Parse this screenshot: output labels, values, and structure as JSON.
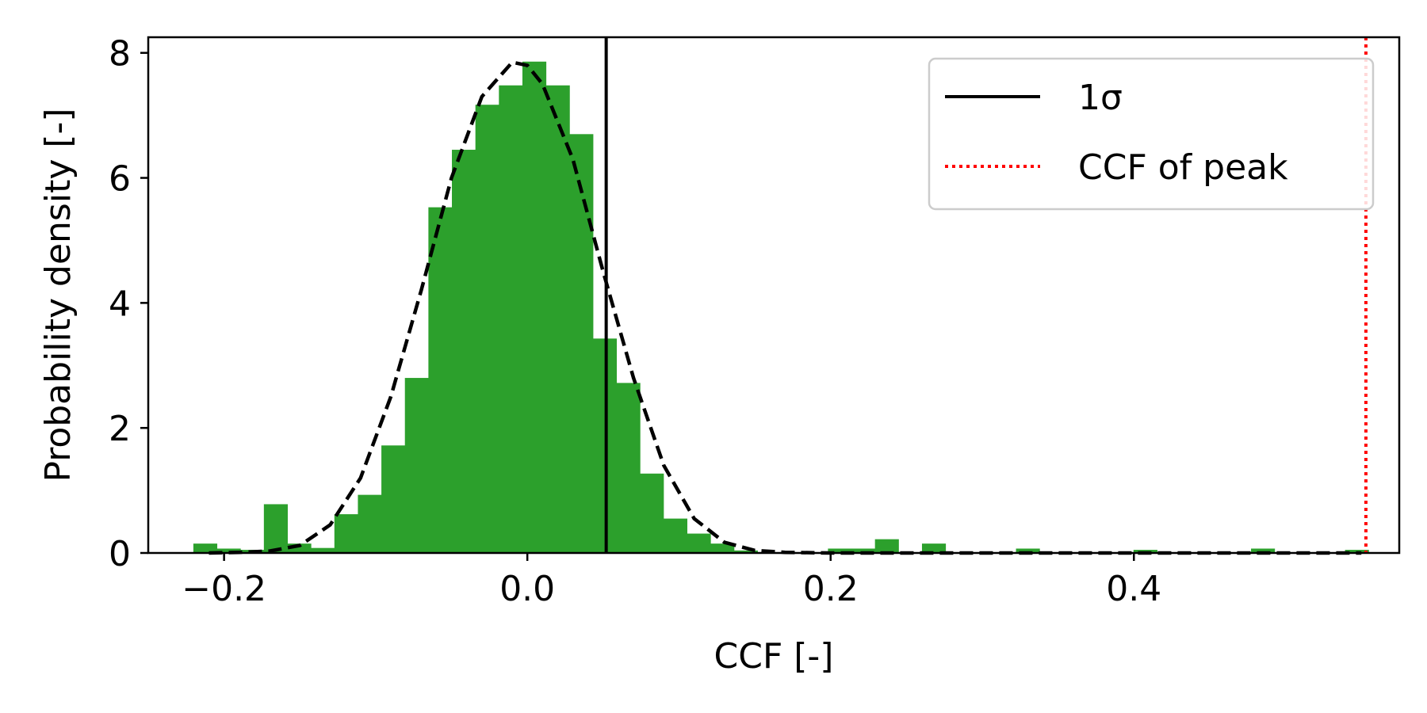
{
  "chart_data": {
    "type": "bar",
    "title": "",
    "xlabel": "CCF [-]",
    "ylabel": "Probability density [-]",
    "xlim": [
      -0.25,
      0.575
    ],
    "ylim": [
      0,
      8.25
    ],
    "x_ticks": [
      {
        "value": -0.2,
        "label": "−0.2"
      },
      {
        "value": 0.0,
        "label": "0.0"
      },
      {
        "value": 0.2,
        "label": "0.2"
      },
      {
        "value": 0.4,
        "label": "0.4"
      }
    ],
    "y_ticks": [
      {
        "value": 0,
        "label": "0"
      },
      {
        "value": 2,
        "label": "2"
      },
      {
        "value": 4,
        "label": "4"
      },
      {
        "value": 6,
        "label": "6"
      },
      {
        "value": 8,
        "label": "8"
      }
    ],
    "histogram": {
      "color": "#2ca02c",
      "bin_width": 0.0155,
      "bins": [
        {
          "x": -0.2125,
          "y": 0.15
        },
        {
          "x": -0.197,
          "y": 0.07
        },
        {
          "x": -0.1815,
          "y": 0.05
        },
        {
          "x": -0.166,
          "y": 0.78
        },
        {
          "x": -0.1505,
          "y": 0.15
        },
        {
          "x": -0.135,
          "y": 0.08
        },
        {
          "x": -0.1195,
          "y": 0.62
        },
        {
          "x": -0.104,
          "y": 0.93
        },
        {
          "x": -0.0885,
          "y": 1.72
        },
        {
          "x": -0.073,
          "y": 2.8
        },
        {
          "x": -0.0575,
          "y": 5.53
        },
        {
          "x": -0.042,
          "y": 6.45
        },
        {
          "x": -0.0265,
          "y": 7.17
        },
        {
          "x": -0.011,
          "y": 7.48
        },
        {
          "x": 0.0045,
          "y": 7.86
        },
        {
          "x": 0.02,
          "y": 7.48
        },
        {
          "x": 0.0355,
          "y": 6.7
        },
        {
          "x": 0.051,
          "y": 3.43
        },
        {
          "x": 0.0665,
          "y": 2.72
        },
        {
          "x": 0.082,
          "y": 1.27
        },
        {
          "x": 0.0975,
          "y": 0.55
        },
        {
          "x": 0.113,
          "y": 0.31
        },
        {
          "x": 0.1285,
          "y": 0.15
        },
        {
          "x": 0.144,
          "y": 0.04
        },
        {
          "x": 0.206,
          "y": 0.07
        },
        {
          "x": 0.2215,
          "y": 0.07
        },
        {
          "x": 0.237,
          "y": 0.22
        },
        {
          "x": 0.268,
          "y": 0.15
        },
        {
          "x": 0.33,
          "y": 0.07
        },
        {
          "x": 0.4075,
          "y": 0.05
        },
        {
          "x": 0.485,
          "y": 0.07
        },
        {
          "x": 0.547,
          "y": 0.05
        }
      ]
    },
    "fit_curve": {
      "style": "dashed",
      "color": "#000000",
      "x": [
        -0.21,
        -0.19,
        -0.17,
        -0.15,
        -0.13,
        -0.11,
        -0.09,
        -0.07,
        -0.05,
        -0.03,
        -0.01,
        0.0,
        0.01,
        0.03,
        0.05,
        0.07,
        0.09,
        0.11,
        0.13,
        0.15,
        0.17,
        0.2,
        0.25,
        0.3,
        0.35,
        0.4,
        0.45,
        0.5,
        0.55
      ],
      "y": [
        0.0,
        0.01,
        0.03,
        0.12,
        0.45,
        1.2,
        2.5,
        4.2,
        6.0,
        7.3,
        7.85,
        7.8,
        7.5,
        6.3,
        4.5,
        2.8,
        1.4,
        0.55,
        0.17,
        0.04,
        0.01,
        0.0,
        0.0,
        0.0,
        0.0,
        0.0,
        0.0,
        0.0,
        0.0
      ]
    },
    "vlines": [
      {
        "x": 0.052,
        "color": "#000000",
        "style": "solid"
      },
      {
        "x": 0.553,
        "color": "#ff0000",
        "style": "dotted"
      }
    ],
    "legend": {
      "position": "top-right",
      "entries": [
        {
          "label": "1σ",
          "color": "#000000",
          "style": "solid"
        },
        {
          "label": "CCF of peak",
          "color": "#ff0000",
          "style": "dotted"
        }
      ]
    },
    "grid": false
  }
}
